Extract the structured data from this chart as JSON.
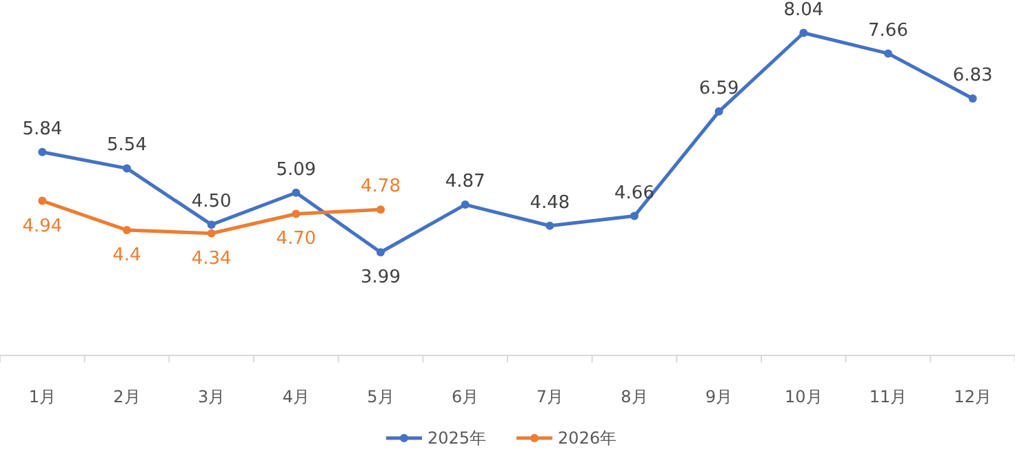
{
  "chart_data": {
    "type": "line",
    "categories": [
      "1月",
      "2月",
      "3月",
      "4月",
      "5月",
      "6月",
      "7月",
      "8月",
      "9月",
      "10月",
      "11月",
      "12月"
    ],
    "series": [
      {
        "name": "2025年",
        "color": "#4472c4",
        "values": [
          5.84,
          5.54,
          4.5,
          5.09,
          3.99,
          4.87,
          4.48,
          4.66,
          6.59,
          8.04,
          7.66,
          6.83
        ],
        "value_labels": [
          "5.84",
          "5.54",
          "4.50",
          "5.09",
          "3.99",
          "4.87",
          "4.48",
          "4.66",
          "6.59",
          "8.04",
          "7.66",
          "6.83"
        ]
      },
      {
        "name": "2026年",
        "color": "#ed7d31",
        "values": [
          4.94,
          4.4,
          4.34,
          4.7,
          4.78,
          null,
          null,
          null,
          null,
          null,
          null,
          null
        ],
        "value_labels": [
          "4.94",
          "4.4",
          "4.34",
          "4.70",
          "4.78",
          null,
          null,
          null,
          null,
          null,
          null,
          null
        ]
      }
    ],
    "legend": "bottom",
    "marker": "circle",
    "line_style": "solid"
  }
}
